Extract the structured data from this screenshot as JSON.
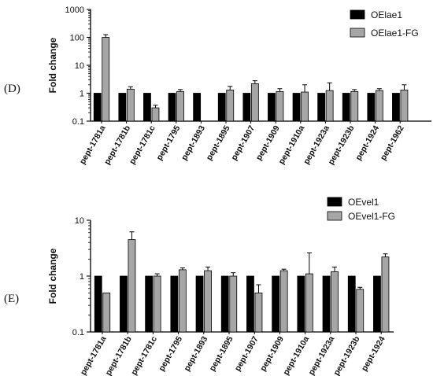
{
  "chart_data": [
    {
      "panel": "(D)",
      "type": "bar",
      "ylabel": "Fold change",
      "yscale": "log",
      "ylim": [
        0.1,
        1000
      ],
      "yticks": [
        "0.1",
        "1",
        "10",
        "100",
        "1000"
      ],
      "grid": false,
      "legend_position": "top-right",
      "categories": [
        "pept-1781a",
        "pept-1781b",
        "pept-1781c",
        "pept-1795",
        "pept-1893",
        "pept-1895",
        "pept-1907",
        "pept-1909",
        "pept-1910a",
        "pept-1923a",
        "pept-1923b",
        "pept-1924",
        "pept-1962"
      ],
      "series": [
        {
          "name": "OElae1",
          "color": "#000000",
          "values": [
            1,
            1,
            1,
            1,
            1,
            1,
            1,
            1,
            1,
            1,
            1,
            1,
            1
          ],
          "errors": [
            0,
            0,
            0,
            0,
            0,
            0,
            0,
            0,
            0,
            0,
            0,
            0,
            0
          ]
        },
        {
          "name": "OElae1-FG",
          "color": "#a6a6a6",
          "values": [
            100,
            1.4,
            0.3,
            1.15,
            null,
            1.3,
            2.2,
            1.15,
            1.1,
            1.25,
            1.15,
            1.25,
            1.3
          ],
          "errors": [
            25,
            0.3,
            0.07,
            0.2,
            null,
            0.45,
            0.6,
            0.3,
            0.9,
            1.1,
            0.2,
            0.2,
            0.7
          ]
        }
      ]
    },
    {
      "panel": "(E)",
      "type": "bar",
      "ylabel": "Fold change",
      "yscale": "log",
      "ylim": [
        0.1,
        10
      ],
      "yticks": [
        "0.1",
        "1",
        "10"
      ],
      "grid": false,
      "legend_position": "top-right",
      "categories": [
        "pept-1781a",
        "pept-1781b",
        "pept-1781c",
        "pept-1795",
        "pept-1893",
        "pept-1895",
        "pept-1907",
        "pept-1909",
        "pept-1910a",
        "pept-1923a",
        "pept-1923b",
        "pept-1924"
      ],
      "series": [
        {
          "name": "OEvel1",
          "color": "#000000",
          "values": [
            1,
            1,
            1,
            1,
            1,
            1,
            1,
            1,
            1,
            1,
            1,
            1
          ],
          "errors": [
            0,
            0,
            0,
            0,
            0,
            0,
            0,
            0,
            0,
            0,
            0,
            0
          ]
        },
        {
          "name": "OEvel1-FG",
          "color": "#a6a6a6",
          "values": [
            0.5,
            4.5,
            1.0,
            1.3,
            1.25,
            1.0,
            0.5,
            1.25,
            1.1,
            1.2,
            0.58,
            2.2
          ],
          "errors": [
            0,
            1.7,
            0.1,
            0.1,
            0.2,
            0.15,
            0.2,
            0.08,
            1.5,
            0.25,
            0.05,
            0.3
          ]
        }
      ]
    }
  ]
}
